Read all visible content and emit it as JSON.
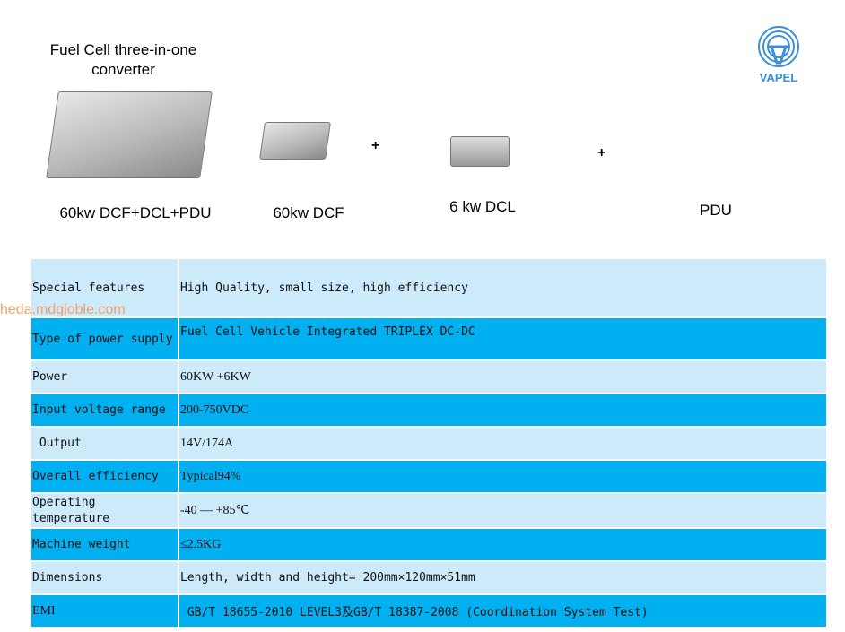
{
  "header": {
    "title": "Fuel Cell three-in-one converter",
    "logo_text": "VAPEL",
    "plus1": "+",
    "plus2": "+"
  },
  "products": [
    {
      "label": "60kw DCF+DCL+PDU"
    },
    {
      "label": "60kw  DCF"
    },
    {
      "label": "6 kw DCL"
    },
    {
      "label": "PDU"
    }
  ],
  "watermark": "heda.mdgloble.com",
  "colors": {
    "light_row": "#cdeafb",
    "dark_row": "#00b0f0",
    "logo": "#3d8fd9"
  },
  "table": [
    {
      "key": "Special features",
      "value": "High Quality, small size, high efficiency"
    },
    {
      "key": "Type of power supply",
      "value": " Fuel Cell Vehicle Integrated TRIPLEX DC-DC"
    },
    {
      "key": "Power",
      "value": "60KW +6KW"
    },
    {
      "key": "Input voltage range",
      "value": "200-750VDC"
    },
    {
      "key": " Output",
      "value": "14V/174A"
    },
    {
      "key": "Overall efficiency",
      "value": "Typical94%"
    },
    {
      "key": "Operating temperature",
      "value": "-40 — +85℃"
    },
    {
      "key": "Machine weight",
      "value": "≤2.5KG"
    },
    {
      "key": "Dimensions",
      "value": "Length, width and height= 200mm×120mm×51mm"
    },
    {
      "key": "EMI",
      "value": " GB/T 18655-2010 LEVEL3及GB/T 18387-2008 (Coordination System Test)"
    }
  ]
}
